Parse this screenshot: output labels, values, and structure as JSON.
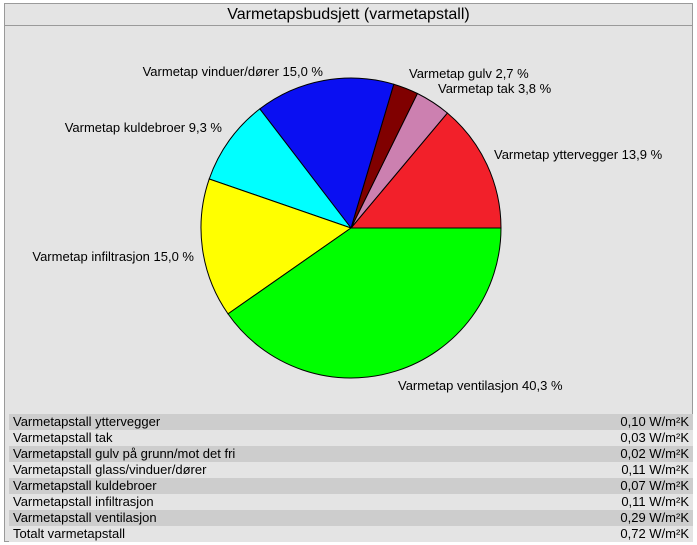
{
  "window": {
    "title": "Varmetapsbudsjett (varmetapstall)"
  },
  "chart_data": {
    "type": "pie",
    "title": "Varmetapsbudsjett (varmetapstall)",
    "slices": [
      {
        "label": "Varmetap yttervegger 13,9 %",
        "value": 13.9,
        "color": "#f2202a"
      },
      {
        "label": "Varmetap tak 3,8 %",
        "value": 3.8,
        "color": "#cc80b0"
      },
      {
        "label": "Varmetap gulv 2,7 %",
        "value": 2.7,
        "color": "#800000"
      },
      {
        "label": "Varmetap vinduer/dører 15,0 %",
        "value": 15.0,
        "color": "#0a0ff2"
      },
      {
        "label": "Varmetap kuldebroer 9,3 %",
        "value": 9.3,
        "color": "#00ffff"
      },
      {
        "label": "Varmetap infiltrasjon 15,0 %",
        "value": 15.0,
        "color": "#ffff00"
      },
      {
        "label": "Varmetap ventilasjon 40,3 %",
        "value": 40.3,
        "color": "#00ff00"
      }
    ]
  },
  "table": {
    "rows": [
      {
        "label": "Varmetapstall yttervegger",
        "value": "0,10 W/m²K"
      },
      {
        "label": "Varmetapstall tak",
        "value": "0,03 W/m²K"
      },
      {
        "label": "Varmetapstall gulv på grunn/mot det fri",
        "value": "0,02 W/m²K"
      },
      {
        "label": "Varmetapstall glass/vinduer/dører",
        "value": "0,11 W/m²K"
      },
      {
        "label": "Varmetapstall kuldebroer",
        "value": "0,07 W/m²K"
      },
      {
        "label": "Varmetapstall infiltrasjon",
        "value": "0,11 W/m²K"
      },
      {
        "label": "Varmetapstall ventilasjon",
        "value": "0,29 W/m²K"
      },
      {
        "label": "Totalt varmetapstall",
        "value": "0,72 W/m²K"
      }
    ]
  }
}
